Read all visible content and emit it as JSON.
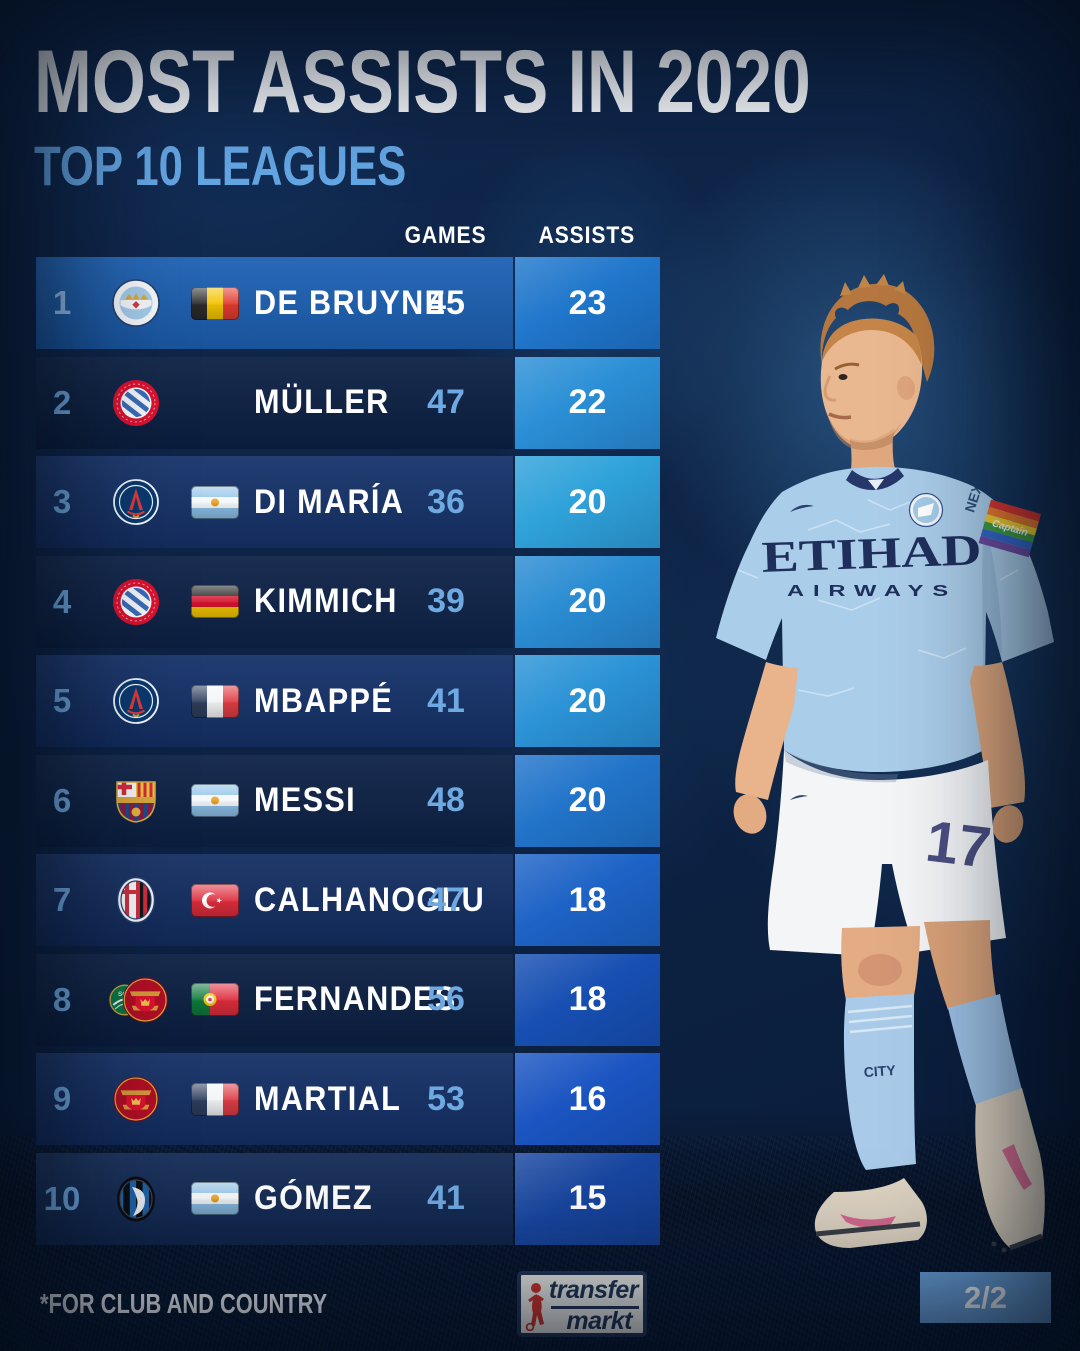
{
  "chart_data": {
    "type": "table",
    "title": "MOST ASSISTS IN 2020",
    "subtitle": "TOP 10 LEAGUES",
    "note": "*FOR CLUB AND COUNTRY",
    "columns": [
      "GAMES",
      "ASSISTS"
    ],
    "rows": [
      {
        "rank": "1",
        "player": "DE BRUYNE",
        "games": "45",
        "assists": "23",
        "clubs": [
          "manchester-city"
        ],
        "nation": "belgium",
        "highlight": true,
        "row_bg": "#1d61b4",
        "assist_bg": "#2077cc",
        "games_color": "#ffffff"
      },
      {
        "rank": "2",
        "player": "MÜLLER",
        "games": "47",
        "assists": "22",
        "clubs": [
          "bayern"
        ],
        "nation": null,
        "highlight": false,
        "row_bg": "#0c2145",
        "assist_bg": "#2b8fd6",
        "games_color": "#6fa9e2"
      },
      {
        "rank": "3",
        "player": "DI MARÍA",
        "games": "36",
        "assists": "20",
        "clubs": [
          "psg"
        ],
        "nation": "argentina",
        "highlight": false,
        "row_bg": "#16336b",
        "assist_bg": "#2fa2da",
        "games_color": "#6fa9e2"
      },
      {
        "rank": "4",
        "player": "KIMMICH",
        "games": "39",
        "assists": "20",
        "clubs": [
          "bayern"
        ],
        "nation": "germany",
        "highlight": false,
        "row_bg": "#0e2349",
        "assist_bg": "#2a8cd2",
        "games_color": "#6fa9e2"
      },
      {
        "rank": "5",
        "player": "MBAPPÉ",
        "games": "41",
        "assists": "20",
        "clubs": [
          "psg"
        ],
        "nation": "france",
        "highlight": false,
        "row_bg": "#15326a",
        "assist_bg": "#2b93d6",
        "games_color": "#6fa9e2"
      },
      {
        "rank": "6",
        "player": "MESSI",
        "games": "48",
        "assists": "20",
        "clubs": [
          "barcelona"
        ],
        "nation": "argentina",
        "highlight": false,
        "row_bg": "#0d2247",
        "assist_bg": "#2174ca",
        "games_color": "#6fa9e2"
      },
      {
        "rank": "7",
        "player": "CALHANOGLU",
        "games": "47",
        "assists": "18",
        "clubs": [
          "milan"
        ],
        "nation": "turkey",
        "highlight": false,
        "row_bg": "#142f63",
        "assist_bg": "#1d63c6",
        "games_color": "#6fa9e2"
      },
      {
        "rank": "8",
        "player": "FERNANDES",
        "games": "56",
        "assists": "18",
        "clubs": [
          "sporting",
          "man-united"
        ],
        "nation": "portugal",
        "highlight": false,
        "row_bg": "#0c2044",
        "assist_bg": "#174fb2",
        "games_color": "#6fa9e2"
      },
      {
        "rank": "9",
        "player": "MARTIAL",
        "games": "53",
        "assists": "16",
        "clubs": [
          "man-united"
        ],
        "nation": "france",
        "highlight": false,
        "row_bg": "#143067",
        "assist_bg": "#1b55c2",
        "games_color": "#6fa9e2"
      },
      {
        "rank": "10",
        "player": "GÓMEZ",
        "games": "41",
        "assists": "15",
        "clubs": [
          "atalanta"
        ],
        "nation": "argentina",
        "highlight": false,
        "row_bg": "#132b57",
        "assist_bg": "#1846a0",
        "games_color": "#6fa9e2"
      }
    ]
  },
  "footer": {
    "footnote": "*FOR CLUB AND COUNTRY",
    "brand_line1": "transfer",
    "brand_line2": "markt",
    "page_badge": "2/2"
  },
  "player_photo": {
    "shirt_sponsor_line1": "ETIHAD",
    "shirt_sponsor_line2": "AIRWAYS",
    "sleeve_text": "NEXEN",
    "armband_text": "Captain",
    "shorts_number": "17",
    "sock_text": "CITY"
  },
  "colors": {
    "background_navy": "#0d2345",
    "row_highlight": "#1d61b4",
    "accent_light_blue": "#6fa9e2",
    "subtitle_blue": "#64a6e4",
    "badge_blue": "#6ba3dd",
    "brand_navy": "#233758",
    "brand_red": "#d6342c",
    "kit_sky_blue": "#aacdea"
  }
}
